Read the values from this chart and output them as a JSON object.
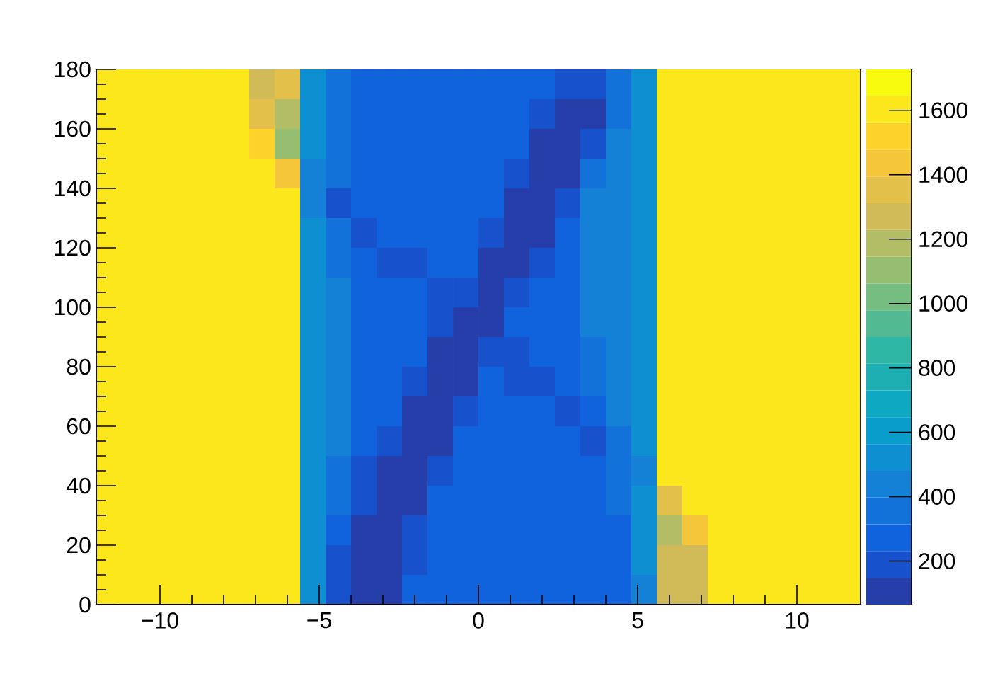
{
  "chart_data": {
    "type": "heatmap",
    "cells": [
      [
        1620,
        1620,
        1620,
        1620,
        1620,
        1620,
        1230,
        1360,
        540,
        360,
        280,
        280,
        280,
        280,
        280,
        280,
        280,
        270,
        170,
        165,
        315,
        540,
        1620,
        1620,
        1620,
        1620,
        1620,
        1620,
        1620,
        1620
      ],
      [
        1620,
        1620,
        1620,
        1620,
        1620,
        1620,
        1330,
        1200,
        540,
        360,
        280,
        280,
        280,
        280,
        280,
        280,
        280,
        186,
        130,
        145,
        346,
        540,
        1620,
        1620,
        1620,
        1620,
        1620,
        1620,
        1620,
        1620
      ],
      [
        1620,
        1620,
        1620,
        1620,
        1620,
        1620,
        1490,
        1120,
        540,
        360,
        280,
        280,
        280,
        280,
        280,
        280,
        246,
        130,
        110,
        201,
        440,
        540,
        1620,
        1620,
        1620,
        1620,
        1620,
        1620,
        1620,
        1620
      ],
      [
        1620,
        1620,
        1620,
        1620,
        1620,
        1620,
        1620,
        1400,
        480,
        360,
        280,
        280,
        280,
        280,
        280,
        280,
        181,
        110,
        130,
        326,
        440,
        540,
        1620,
        1620,
        1620,
        1620,
        1620,
        1620,
        1620,
        1620
      ],
      [
        1620,
        1620,
        1620,
        1620,
        1620,
        1620,
        1620,
        1620,
        404,
        210,
        272,
        280,
        280,
        280,
        280,
        246,
        130,
        110,
        201,
        420,
        440,
        540,
        1620,
        1620,
        1620,
        1620,
        1620,
        1620,
        1620,
        1620
      ],
      [
        1620,
        1620,
        1620,
        1620,
        1620,
        1620,
        1620,
        1620,
        540,
        362,
        215,
        260,
        280,
        280,
        280,
        171,
        110,
        135,
        252,
        430,
        440,
        540,
        1620,
        1620,
        1620,
        1620,
        1620,
        1620,
        1620,
        1620
      ],
      [
        1620,
        1620,
        1620,
        1620,
        1620,
        1620,
        1620,
        1620,
        540,
        360,
        280,
        225,
        230,
        275,
        235,
        120,
        110,
        202,
        280,
        425,
        440,
        540,
        1620,
        1620,
        1620,
        1620,
        1620,
        1620,
        1620,
        1620
      ],
      [
        1620,
        1620,
        1620,
        1620,
        1620,
        1620,
        1620,
        1620,
        540,
        400,
        280,
        280,
        272,
        215,
        150,
        110,
        150,
        269,
        280,
        400,
        440,
        540,
        1620,
        1620,
        1620,
        1620,
        1620,
        1620,
        1620,
        1620
      ],
      [
        1620,
        1620,
        1620,
        1620,
        1620,
        1620,
        1620,
        1620,
        540,
        400,
        280,
        280,
        280,
        192,
        100,
        125,
        241,
        280,
        280,
        400,
        440,
        540,
        1620,
        1620,
        1620,
        1620,
        1620,
        1620,
        1620,
        1620
      ],
      [
        1620,
        1620,
        1620,
        1620,
        1620,
        1620,
        1620,
        1620,
        540,
        400,
        280,
        280,
        246,
        130,
        110,
        171,
        225,
        280,
        280,
        380,
        440,
        540,
        1620,
        1620,
        1620,
        1620,
        1620,
        1620,
        1620,
        1620
      ],
      [
        1620,
        1620,
        1620,
        1620,
        1620,
        1620,
        1620,
        1620,
        540,
        400,
        280,
        280,
        160,
        110,
        140,
        258,
        220,
        225,
        280,
        340,
        440,
        540,
        1620,
        1620,
        1620,
        1620,
        1620,
        1620,
        1620,
        1620
      ],
      [
        1620,
        1620,
        1620,
        1620,
        1620,
        1620,
        1620,
        1620,
        540,
        400,
        280,
        235,
        120,
        110,
        202,
        280,
        280,
        272,
        215,
        296,
        440,
        540,
        1620,
        1620,
        1620,
        1620,
        1620,
        1620,
        1620,
        1620
      ],
      [
        1620,
        1620,
        1620,
        1620,
        1620,
        1620,
        1620,
        1620,
        540,
        400,
        280,
        160,
        110,
        140,
        258,
        280,
        280,
        280,
        280,
        225,
        344,
        540,
        1620,
        1620,
        1620,
        1620,
        1620,
        1620,
        1620,
        1620
      ],
      [
        1620,
        1620,
        1620,
        1620,
        1620,
        1620,
        1620,
        1620,
        540,
        380,
        224,
        110,
        110,
        224,
        280,
        280,
        280,
        280,
        280,
        280,
        330,
        421,
        1620,
        1620,
        1620,
        1620,
        1620,
        1620,
        1620,
        1620
      ],
      [
        1620,
        1620,
        1620,
        1620,
        1620,
        1620,
        1620,
        1620,
        540,
        340,
        160,
        110,
        140,
        258,
        280,
        280,
        280,
        280,
        280,
        280,
        340,
        510,
        1350,
        1620,
        1620,
        1620,
        1620,
        1620,
        1620,
        1620
      ],
      [
        1620,
        1620,
        1620,
        1620,
        1620,
        1620,
        1620,
        1620,
        540,
        266,
        130,
        110,
        181,
        280,
        280,
        280,
        280,
        280,
        280,
        280,
        300,
        540,
        1165,
        1425,
        1620,
        1620,
        1620,
        1620,
        1620,
        1620
      ],
      [
        1620,
        1620,
        1620,
        1620,
        1620,
        1620,
        1620,
        1620,
        540,
        224,
        130,
        130,
        224,
        280,
        280,
        280,
        280,
        280,
        280,
        280,
        280,
        520,
        1260,
        1295,
        1620,
        1620,
        1620,
        1620,
        1620,
        1620
      ],
      [
        1620,
        1620,
        1620,
        1620,
        1620,
        1620,
        1620,
        1620,
        497,
        190,
        145,
        138,
        280,
        280,
        280,
        280,
        280,
        280,
        280,
        280,
        280,
        477,
        1250,
        1230,
        1620,
        1620,
        1620,
        1620,
        1620,
        1620
      ]
    ],
    "xlim": [
      -12,
      12
    ],
    "ylim": [
      0,
      180
    ],
    "xticks": [
      {
        "value": -10,
        "label": "−10"
      },
      {
        "value": -5,
        "label": "−5"
      },
      0,
      5,
      10
    ],
    "yticks": [
      0,
      20,
      40,
      60,
      80,
      100,
      120,
      140,
      160,
      180
    ],
    "clim": [
      65,
      1727
    ],
    "cticks": [
      200,
      400,
      600,
      800,
      1000,
      1200,
      1400,
      1600
    ]
  }
}
